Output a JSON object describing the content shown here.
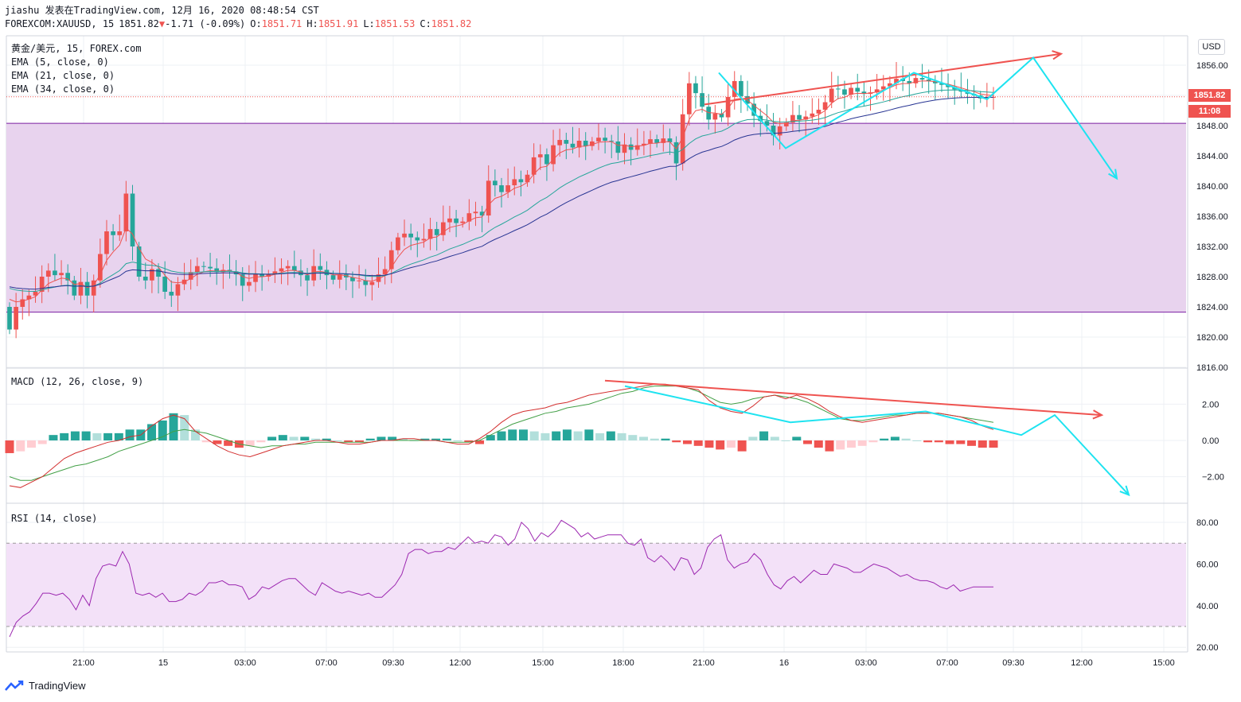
{
  "header": {
    "line1": "jiashu 发表在TradingView.com, 12月 16, 2020 08:48:54 CST",
    "symbol": "FOREXCOM:XAUUSD, 15",
    "last": "1851.82",
    "change_arrow": "▼",
    "change": "-1.71 (-0.09%)",
    "o_label": "O:",
    "o": "1851.71",
    "h_label": "H:",
    "h": "1851.91",
    "l_label": "L:",
    "l": "1851.53",
    "c_label": "C:",
    "c": "1851.82"
  },
  "legend": {
    "pair": "黄金/美元, 15, FOREX.com",
    "ema5": "EMA (5, close, 0)",
    "ema21": "EMA (21, close, 0)",
    "ema34": "EMA (34, close, 0)"
  },
  "macd_label": "MACD (12, 26, close, 9)",
  "rsi_label": "RSI (14, close)",
  "currency_badge": "USD",
  "price_tag": "1851.82",
  "countdown_tag": "11:08",
  "brand": "TradingView",
  "colors": {
    "up": "#ef5350",
    "down": "#26a69a",
    "zone": "#e8d3ee",
    "zone_border": "#7b1fa2",
    "ema5": "#ef5350",
    "ema21": "#26a69a",
    "ema34": "#283593",
    "macd": "#d32f2f",
    "signal": "#43a047",
    "rsi": "#9c27b0",
    "rsi_band": "#f3e1f8",
    "annot_red": "#ef5350",
    "annot_cyan": "#1ee3f0"
  },
  "chart_data": {
    "type": "candlestick",
    "price_ticks": [
      1856,
      1852,
      1848,
      1844,
      1840,
      1836,
      1832,
      1828,
      1824,
      1820,
      1816
    ],
    "macd_ticks": [
      2,
      0,
      -2
    ],
    "rsi_ticks": [
      80,
      60,
      40,
      20
    ],
    "x_ticks": [
      "21:00",
      "15",
      "03:00",
      "07:00",
      "09:30",
      "12:00",
      "15:00",
      "18:00",
      "21:00",
      "16",
      "03:00",
      "07:00",
      "09:30",
      "12:00",
      "15:00"
    ],
    "zone": {
      "top": 1848.3,
      "bottom": 1823.3
    },
    "closes": [
      1821,
      1824,
      1825,
      1825.5,
      1826,
      1828,
      1828.8,
      1828.2,
      1828.5,
      1827.5,
      1825.5,
      1827.3,
      1825.5,
      1827.5,
      1831,
      1834,
      1833.5,
      1834,
      1839,
      1832,
      1828,
      1827.5,
      1829,
      1828,
      1826,
      1825.5,
      1827,
      1827.6,
      1828.6,
      1829.4,
      1829.3,
      1829.1,
      1828.6,
      1828.9,
      1828.7,
      1828.3,
      1826.8,
      1827.3,
      1828.4,
      1828,
      1828.3,
      1828.7,
      1829.1,
      1829.4,
      1828.8,
      1828.2,
      1827.5,
      1829.4,
      1828.9,
      1828.2,
      1827.6,
      1828.3,
      1827.9,
      1827.4,
      1827.5,
      1826.9,
      1827.3,
      1828.3,
      1829,
      1831.5,
      1833.2,
      1833.7,
      1833.2,
      1832.8,
      1833,
      1834.3,
      1833.5,
      1835.2,
      1835.7,
      1835.1,
      1835.3,
      1836.4,
      1836.6,
      1836.1,
      1840.7,
      1840.1,
      1839.2,
      1840.1,
      1840.9,
      1840.5,
      1841.5,
      1843.8,
      1844.2,
      1842.9,
      1845.4,
      1846.1,
      1845.6,
      1845.1,
      1846,
      1845.3,
      1845.9,
      1846.4,
      1846,
      1845.9,
      1844.4,
      1845.5,
      1844.8,
      1845.4,
      1845.6,
      1846.2,
      1845.7,
      1846.3,
      1845.8,
      1843,
      1849.5,
      1853.6,
      1852.3,
      1850.5,
      1848.8,
      1849.6,
      1849.1,
      1851.8,
      1853.9,
      1851.9,
      1850.9,
      1849.3,
      1848.6,
      1848,
      1846.7,
      1847.9,
      1848.4,
      1849.4,
      1848.8,
      1849.2,
      1849.6,
      1850.1,
      1851.1,
      1852.9,
      1852.8,
      1852.1,
      1853,
      1852.5,
      1852.2,
      1852.4,
      1852.8,
      1853.2,
      1853.6,
      1854.2,
      1853.9,
      1853.6,
      1854.3,
      1854.1,
      1853.9,
      1853.6,
      1853.4,
      1853.1,
      1852.8,
      1852.5,
      1852.2,
      1852,
      1851.6,
      1851.8,
      1851.8
    ],
    "rsi_values": [
      25,
      32,
      35,
      37,
      41,
      46,
      46,
      45,
      46,
      43,
      38,
      45,
      40,
      53,
      59,
      60,
      59,
      66,
      60,
      46,
      45,
      46,
      44,
      46,
      42,
      42,
      43,
      46,
      45,
      47,
      51,
      51,
      52,
      50,
      50,
      49,
      43,
      45,
      49,
      48,
      50,
      52,
      53,
      53,
      50,
      47,
      45,
      51,
      49,
      47,
      46,
      47,
      46,
      45,
      46,
      44,
      44,
      47,
      50,
      55,
      65,
      67,
      67,
      65,
      66,
      66,
      68,
      67,
      70,
      73,
      70,
      71,
      70,
      74,
      73,
      69,
      72,
      80,
      77,
      71,
      75,
      73,
      76,
      81,
      79,
      77,
      73,
      75,
      72,
      73,
      74,
      74,
      74,
      70,
      69,
      72,
      63,
      61,
      64,
      61,
      57,
      63,
      62,
      55,
      58,
      68,
      72,
      74,
      62,
      58,
      60,
      61,
      65,
      62,
      55,
      50,
      48,
      52,
      54,
      51,
      54,
      57,
      55,
      55,
      60,
      59,
      58,
      56,
      56,
      58,
      60,
      59,
      58,
      56,
      54,
      55,
      53,
      52,
      52,
      51,
      49,
      48,
      50,
      47,
      48,
      49,
      49,
      49,
      49
    ],
    "macd_values": [
      -2.5,
      -2.6,
      -2.3,
      -2.0,
      -1.5,
      -1.0,
      -0.7,
      -0.5,
      -0.3,
      -0.1,
      0.0,
      0.2,
      0.3,
      0.8,
      1.2,
      1.4,
      1.2,
      0.5,
      0.1,
      -0.3,
      -0.6,
      -0.8,
      -0.9,
      -0.7,
      -0.5,
      -0.3,
      -0.2,
      -0.1,
      0.0,
      0.0,
      -0.1,
      -0.2,
      -0.2,
      -0.1,
      0.0,
      0.0,
      0.1,
      0.1,
      0.0,
      0.0,
      -0.1,
      -0.2,
      -0.2,
      0.1,
      0.5,
      1.0,
      1.4,
      1.6,
      1.7,
      1.8,
      2.0,
      2.1,
      2.3,
      2.5,
      2.6,
      2.7,
      2.8,
      2.9,
      3.0,
      3.1,
      3.1,
      3.0,
      2.9,
      2.8,
      2.2,
      1.8,
      1.6,
      1.5,
      1.9,
      2.4,
      2.5,
      2.3,
      2.5,
      2.3,
      2.0,
      1.6,
      1.3,
      1.1,
      1.0,
      1.1,
      1.2,
      1.3,
      1.4,
      1.5,
      1.5,
      1.5,
      1.4,
      1.3,
      1.1,
      0.8,
      0.6
    ],
    "signal_values": [
      -2.0,
      -2.2,
      -2.2,
      -2.0,
      -1.8,
      -1.6,
      -1.4,
      -1.3,
      -1.1,
      -0.9,
      -0.6,
      -0.4,
      -0.2,
      0.0,
      0.2,
      0.5,
      0.6,
      0.5,
      0.4,
      0.2,
      0.0,
      -0.2,
      -0.3,
      -0.4,
      -0.3,
      -0.3,
      -0.2,
      -0.2,
      -0.1,
      -0.1,
      -0.1,
      -0.1,
      -0.1,
      -0.1,
      0.0,
      0.0,
      0.0,
      0.0,
      0.0,
      0.0,
      -0.1,
      -0.1,
      -0.1,
      0.0,
      0.3,
      0.6,
      0.9,
      1.1,
      1.3,
      1.5,
      1.6,
      1.8,
      1.9,
      2.0,
      2.2,
      2.4,
      2.6,
      2.7,
      2.9,
      3.0,
      3.0,
      3.0,
      2.9,
      2.7,
      2.4,
      2.1,
      2.0,
      2.1,
      2.3,
      2.4,
      2.5,
      2.4,
      2.3,
      2.1,
      1.8,
      1.5,
      1.2,
      1.1,
      1.1,
      1.2,
      1.3,
      1.4,
      1.4,
      1.5,
      1.5,
      1.5,
      1.4,
      1.3,
      1.2,
      1.1,
      1.0
    ],
    "histogram": [
      -0.7,
      -0.6,
      -0.4,
      -0.2,
      0.3,
      0.4,
      0.5,
      0.5,
      0.4,
      0.4,
      0.4,
      0.6,
      0.6,
      0.9,
      1.1,
      1.5,
      1.4,
      0.6,
      -0.1,
      -0.2,
      -0.3,
      -0.4,
      -0.3,
      -0.1,
      0.2,
      0.3,
      0.2,
      0.2,
      0.1,
      0.1,
      0.0,
      -0.1,
      -0.1,
      0.1,
      0.2,
      0.2,
      0.1,
      0.0,
      0.1,
      0.1,
      0.1,
      0.0,
      -0.1,
      -0.2,
      0.3,
      0.5,
      0.6,
      0.6,
      0.5,
      0.4,
      0.5,
      0.6,
      0.5,
      0.6,
      0.4,
      0.5,
      0.4,
      0.3,
      0.2,
      0.1,
      0.1,
      -0.1,
      -0.2,
      -0.3,
      -0.4,
      -0.5,
      -0.4,
      -0.6,
      0.2,
      0.5,
      0.2,
      0.0,
      0.2,
      -0.2,
      -0.4,
      -0.6,
      -0.5,
      -0.4,
      -0.3,
      -0.1,
      0.1,
      0.2,
      0.1,
      0.0,
      -0.1,
      -0.1,
      -0.2,
      -0.2,
      -0.3,
      -0.4,
      -0.4
    ],
    "annotations": {
      "red_trend_price": [
        [
          1850.8,
          1857.5
        ]
      ],
      "cyan_zigzag_price": [
        "1855",
        "1845",
        "1855",
        "1851.5",
        "1857",
        "1841"
      ],
      "red_trend_macd": [
        3.3,
        1.4
      ],
      "cyan_zigzag_macd": [
        "3.0",
        "1.0",
        "1.6",
        "0.3",
        "1.4",
        "-3.0"
      ]
    }
  }
}
